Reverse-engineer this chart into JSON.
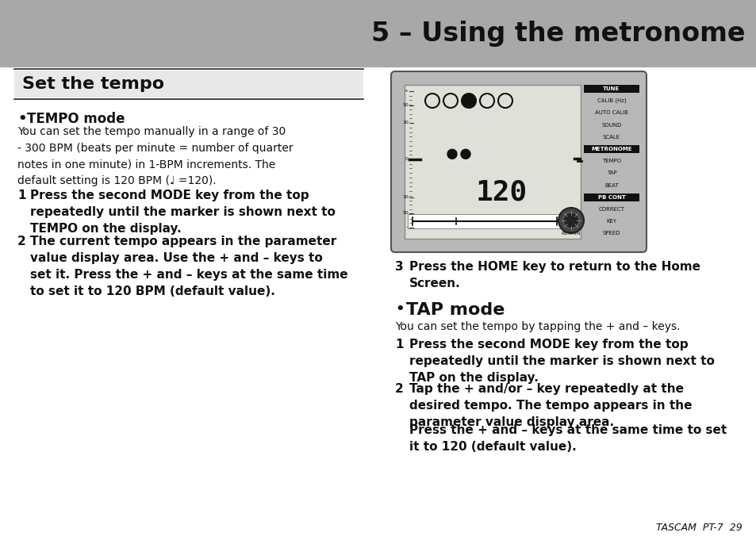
{
  "title": "5 – Using the metronome",
  "title_bg": "#a8a8a8",
  "title_color": "#111111",
  "page_bg": "#ffffff",
  "section_title": "Set the tempo",
  "bullet1_head": "TEMPO mode",
  "bullet1_body": "You can set the tempo manually in a range of 30\n- 300 BPM (beats per minute = number of quarter\nnotes in one minute) in 1-BPM increments. The\ndefault setting is 120 BPM (♩ =120).",
  "step1_text": "Press the second MODE key from the top\nrepeatedly until the marker is shown next to\nTEMPO on the display.",
  "step2_text": "The current tempo appears in the parameter\nvalue display area. Use the + and – keys to\nset it. Press the + and – keys at the same time\nto set it to 120 BPM (default value).",
  "step3_text": "Press the HOME key to return to the Home\nScreen.",
  "bullet2_head": "TAP mode",
  "bullet2_body": "You can set the tempo by tapping the + and – keys.",
  "step4_text": "Press the second MODE key from the top\nrepeatedly until the marker is shown next to\nTAP on the display.",
  "step5_text": "Tap the + and/or – key repeatedly at the\ndesired tempo. The tempo appears in the\nparameter value display area.",
  "step5b_text": "Press the + and – keys at the same time to set\nit to 120 (default value).",
  "footer": "TASCAM  PT-7  29",
  "device_labels": [
    "TUNE",
    "CALIB (Hz)",
    "AUTO CALIB",
    "SOUND",
    "SCALE",
    "METRONOME",
    "TEMPO",
    "TAP",
    "BEAT",
    "PB CONT",
    "CORRECT",
    "KEY",
    "SPEED"
  ],
  "device_highlight_black": [
    0,
    5,
    9
  ],
  "device_marker_idx": 6,
  "col_split": 480
}
